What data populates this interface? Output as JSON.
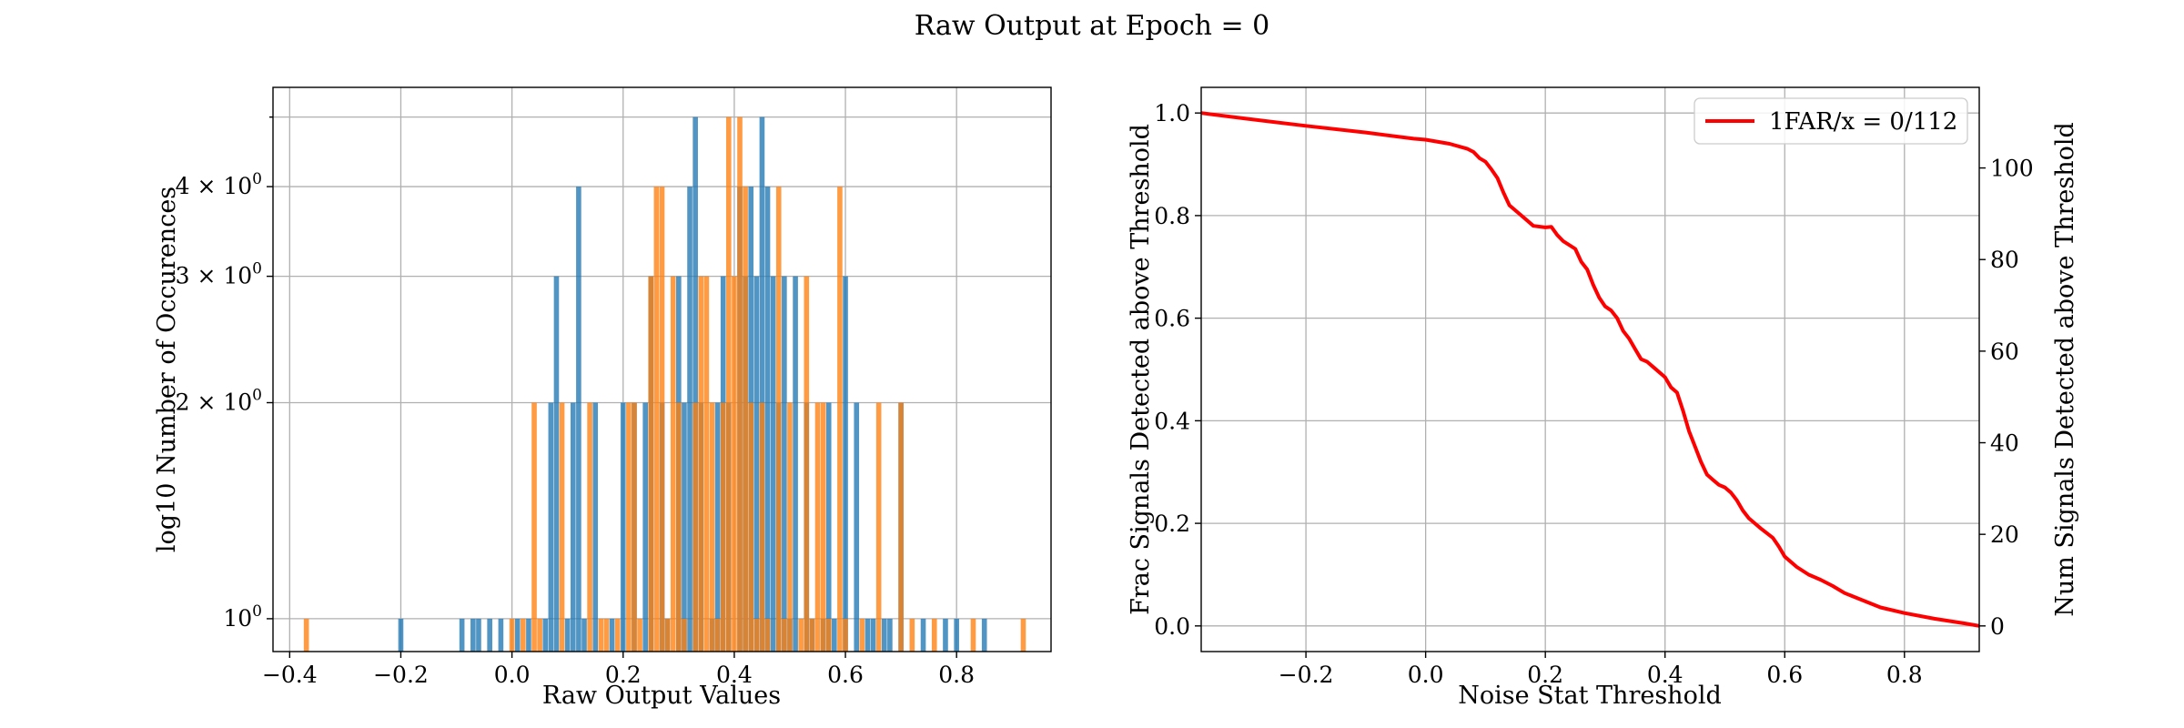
{
  "figure_title": "Raw Output at Epoch = 0",
  "colors": {
    "blue": "#1f77b4",
    "orange": "#ff7f0e",
    "red": "#ff0000"
  },
  "chart_data": [
    {
      "type": "bar",
      "subtype": "histogram",
      "xlabel": "Raw Output Values",
      "ylabel": "log10 Number of Occurences",
      "xlim": [
        -0.43,
        0.97
      ],
      "ylim": [
        0.9,
        5.5
      ],
      "y_scale": "log",
      "grid": true,
      "x_ticks": [
        -0.4,
        -0.2,
        0.0,
        0.2,
        0.4,
        0.6,
        0.8
      ],
      "x_tick_labels": [
        "−0.4",
        "−0.2",
        "0.0",
        "0.2",
        "0.4",
        "0.6",
        "0.8"
      ],
      "y_ticks": [
        {
          "value": 1,
          "base": "10",
          "exp": "0",
          "mult": ""
        },
        {
          "value": 2,
          "base": "10",
          "exp": "0",
          "mult": "2 × "
        },
        {
          "value": 3,
          "base": "10",
          "exp": "0",
          "mult": "3 × "
        },
        {
          "value": 4,
          "base": "10",
          "exp": "0",
          "mult": "4 × "
        }
      ],
      "bin_width": 0.01,
      "series": [
        {
          "color": "#1f77b4",
          "alpha": 0.78,
          "bins": [
            [
              -0.2,
              1
            ],
            [
              -0.09,
              1
            ],
            [
              -0.07,
              1
            ],
            [
              -0.06,
              1
            ],
            [
              -0.04,
              1
            ],
            [
              -0.02,
              1
            ],
            [
              0.01,
              1
            ],
            [
              0.03,
              1
            ],
            [
              0.06,
              1
            ],
            [
              0.07,
              2
            ],
            [
              0.08,
              3
            ],
            [
              0.1,
              1
            ],
            [
              0.11,
              2
            ],
            [
              0.12,
              4
            ],
            [
              0.13,
              1
            ],
            [
              0.15,
              2
            ],
            [
              0.18,
              1
            ],
            [
              0.2,
              2
            ],
            [
              0.22,
              2
            ],
            [
              0.24,
              2
            ],
            [
              0.25,
              3
            ],
            [
              0.27,
              2
            ],
            [
              0.28,
              1
            ],
            [
              0.3,
              3
            ],
            [
              0.31,
              2
            ],
            [
              0.32,
              4
            ],
            [
              0.33,
              5
            ],
            [
              0.34,
              2
            ],
            [
              0.36,
              1
            ],
            [
              0.37,
              2
            ],
            [
              0.38,
              3
            ],
            [
              0.39,
              2
            ],
            [
              0.41,
              4
            ],
            [
              0.42,
              3
            ],
            [
              0.43,
              4
            ],
            [
              0.44,
              3
            ],
            [
              0.45,
              5
            ],
            [
              0.46,
              4
            ],
            [
              0.47,
              3
            ],
            [
              0.48,
              2
            ],
            [
              0.49,
              3
            ],
            [
              0.5,
              1
            ],
            [
              0.51,
              3
            ],
            [
              0.53,
              2
            ],
            [
              0.54,
              1
            ],
            [
              0.56,
              1
            ],
            [
              0.57,
              2
            ],
            [
              0.58,
              1
            ],
            [
              0.6,
              3
            ],
            [
              0.62,
              2
            ],
            [
              0.64,
              1
            ],
            [
              0.65,
              1
            ],
            [
              0.67,
              1
            ],
            [
              0.68,
              1
            ],
            [
              0.7,
              2
            ],
            [
              0.74,
              1
            ],
            [
              0.78,
              1
            ],
            [
              0.8,
              1
            ],
            [
              0.85,
              1
            ]
          ]
        },
        {
          "color": "#ff7f0e",
          "alpha": 0.78,
          "bins": [
            [
              -0.37,
              1
            ],
            [
              0.0,
              1
            ],
            [
              0.02,
              1
            ],
            [
              0.04,
              2
            ],
            [
              0.05,
              1
            ],
            [
              0.09,
              2
            ],
            [
              0.14,
              2
            ],
            [
              0.16,
              1
            ],
            [
              0.17,
              1
            ],
            [
              0.19,
              1
            ],
            [
              0.21,
              2
            ],
            [
              0.22,
              2
            ],
            [
              0.23,
              1
            ],
            [
              0.25,
              3
            ],
            [
              0.26,
              4
            ],
            [
              0.27,
              4
            ],
            [
              0.28,
              1
            ],
            [
              0.29,
              3
            ],
            [
              0.3,
              2
            ],
            [
              0.31,
              1
            ],
            [
              0.33,
              2
            ],
            [
              0.34,
              3
            ],
            [
              0.35,
              3
            ],
            [
              0.36,
              2
            ],
            [
              0.37,
              1
            ],
            [
              0.38,
              2
            ],
            [
              0.39,
              5
            ],
            [
              0.4,
              3
            ],
            [
              0.41,
              5
            ],
            [
              0.42,
              4
            ],
            [
              0.43,
              2
            ],
            [
              0.44,
              1
            ],
            [
              0.45,
              2
            ],
            [
              0.46,
              1
            ],
            [
              0.48,
              4
            ],
            [
              0.49,
              1
            ],
            [
              0.5,
              2
            ],
            [
              0.52,
              1
            ],
            [
              0.53,
              3
            ],
            [
              0.54,
              1
            ],
            [
              0.55,
              2
            ],
            [
              0.56,
              2
            ],
            [
              0.57,
              1
            ],
            [
              0.59,
              4
            ],
            [
              0.6,
              1
            ],
            [
              0.63,
              1
            ],
            [
              0.66,
              2
            ],
            [
              0.7,
              2
            ],
            [
              0.72,
              1
            ],
            [
              0.76,
              1
            ],
            [
              0.83,
              1
            ],
            [
              0.92,
              1
            ]
          ]
        }
      ]
    },
    {
      "type": "line",
      "xlabel": "Noise Stat Threshold",
      "ylabel": "Frac Signals Detected above Threshold",
      "ylabel_right": "Num Signals Detected above Threshold",
      "xlim": [
        -0.375,
        0.925
      ],
      "ylim": [
        -0.05,
        1.05
      ],
      "ylim_right": [
        -5.6,
        117.6
      ],
      "grid": true,
      "x_ticks": [
        -0.2,
        0.0,
        0.2,
        0.4,
        0.6,
        0.8
      ],
      "x_tick_labels": [
        "−0.2",
        "0.0",
        "0.2",
        "0.4",
        "0.6",
        "0.8"
      ],
      "y_ticks": [
        0.0,
        0.2,
        0.4,
        0.6,
        0.8,
        1.0
      ],
      "y_tick_labels": [
        "0.0",
        "0.2",
        "0.4",
        "0.6",
        "0.8",
        "1.0"
      ],
      "y_ticks_right": [
        0,
        20,
        40,
        60,
        80,
        100
      ],
      "y_tick_labels_right": [
        "0",
        "20",
        "40",
        "60",
        "80",
        "100"
      ],
      "legend_position": "upper right",
      "series": [
        {
          "name": "1FAR/x = 0/112",
          "color": "#ff0000",
          "points": [
            [
              -0.375,
              1.0
            ],
            [
              -0.3,
              0.989
            ],
            [
              -0.2,
              0.975
            ],
            [
              -0.1,
              0.962
            ],
            [
              -0.02,
              0.95
            ],
            [
              0.0,
              0.948
            ],
            [
              0.04,
              0.94
            ],
            [
              0.07,
              0.93
            ],
            [
              0.08,
              0.924
            ],
            [
              0.09,
              0.912
            ],
            [
              0.1,
              0.905
            ],
            [
              0.11,
              0.89
            ],
            [
              0.12,
              0.873
            ],
            [
              0.13,
              0.845
            ],
            [
              0.14,
              0.82
            ],
            [
              0.16,
              0.8
            ],
            [
              0.18,
              0.78
            ],
            [
              0.2,
              0.777
            ],
            [
              0.21,
              0.778
            ],
            [
              0.22,
              0.762
            ],
            [
              0.23,
              0.75
            ],
            [
              0.25,
              0.735
            ],
            [
              0.26,
              0.71
            ],
            [
              0.27,
              0.695
            ],
            [
              0.28,
              0.665
            ],
            [
              0.29,
              0.64
            ],
            [
              0.3,
              0.623
            ],
            [
              0.31,
              0.615
            ],
            [
              0.32,
              0.6
            ],
            [
              0.33,
              0.575
            ],
            [
              0.34,
              0.56
            ],
            [
              0.35,
              0.54
            ],
            [
              0.36,
              0.52
            ],
            [
              0.37,
              0.515
            ],
            [
              0.38,
              0.505
            ],
            [
              0.39,
              0.495
            ],
            [
              0.4,
              0.485
            ],
            [
              0.41,
              0.465
            ],
            [
              0.42,
              0.455
            ],
            [
              0.43,
              0.42
            ],
            [
              0.44,
              0.38
            ],
            [
              0.45,
              0.35
            ],
            [
              0.46,
              0.32
            ],
            [
              0.47,
              0.295
            ],
            [
              0.48,
              0.285
            ],
            [
              0.49,
              0.275
            ],
            [
              0.5,
              0.27
            ],
            [
              0.51,
              0.26
            ],
            [
              0.52,
              0.245
            ],
            [
              0.53,
              0.225
            ],
            [
              0.54,
              0.21
            ],
            [
              0.55,
              0.2
            ],
            [
              0.56,
              0.19
            ],
            [
              0.58,
              0.172
            ],
            [
              0.59,
              0.155
            ],
            [
              0.6,
              0.135
            ],
            [
              0.62,
              0.115
            ],
            [
              0.64,
              0.1
            ],
            [
              0.66,
              0.09
            ],
            [
              0.68,
              0.078
            ],
            [
              0.7,
              0.064
            ],
            [
              0.73,
              0.05
            ],
            [
              0.76,
              0.036
            ],
            [
              0.8,
              0.025
            ],
            [
              0.85,
              0.014
            ],
            [
              0.9,
              0.005
            ],
            [
              0.925,
              0.0
            ]
          ]
        }
      ]
    }
  ]
}
